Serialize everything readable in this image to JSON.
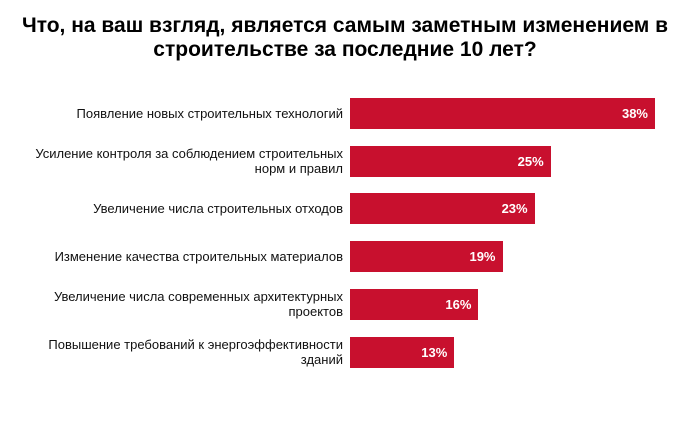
{
  "chart_data": {
    "type": "bar",
    "orientation": "horizontal",
    "title": "Что, на ваш взгляд, является самым заметным изменением в строительстве за последние 10 лет?",
    "categories": [
      "Появление новых строительных технологий",
      "Усиление контроля за соблюдением строительных норм и правил",
      "Увеличение числа строительных отходов",
      "Изменение качества строительных материалов",
      "Увеличение числа современных архитектурных проектов",
      "Повышение требований к энергоэффективности зданий"
    ],
    "values": [
      38,
      25,
      23,
      19,
      16,
      13
    ],
    "value_labels": [
      "38%",
      "25%",
      "23%",
      "19%",
      "16%",
      "13%"
    ],
    "color": "#c8102e"
  }
}
